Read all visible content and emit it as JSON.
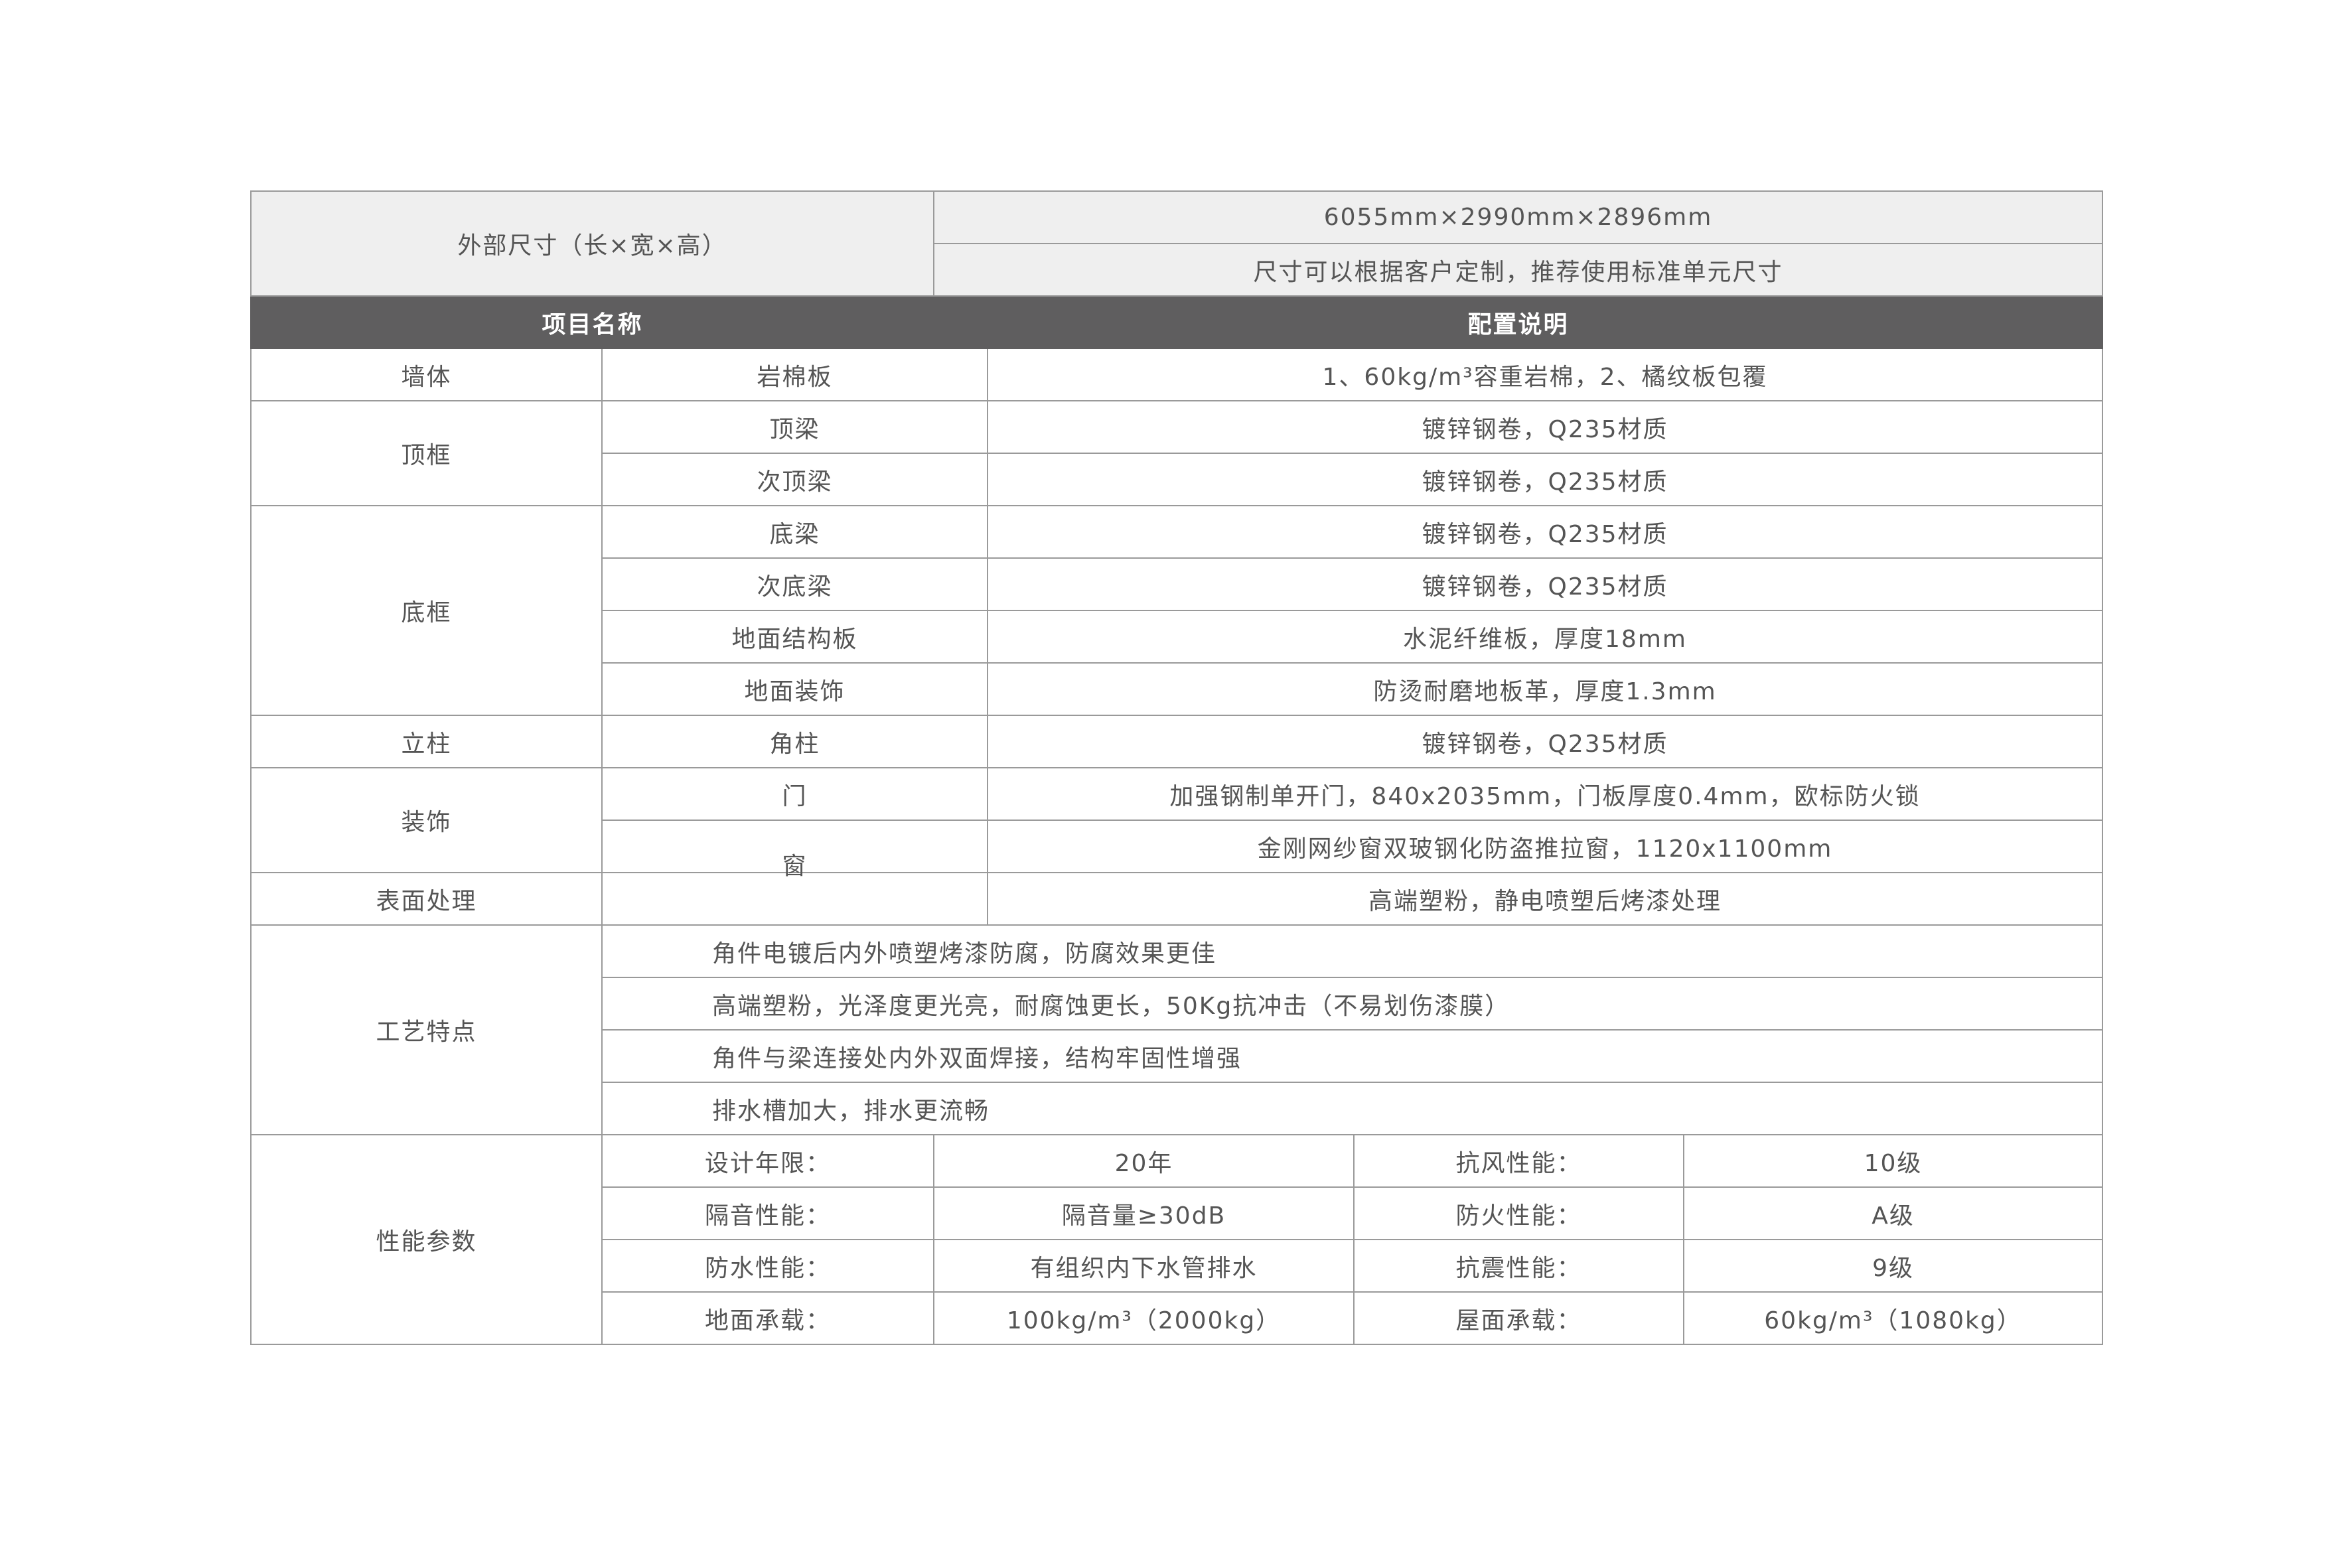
{
  "dimensions": {
    "label": "外部尺寸（长×宽×高）",
    "value": "6055mm×2990mm×2896mm",
    "note": "尺寸可以根据客户定制，推荐使用标准单元尺寸"
  },
  "header": {
    "item": "项目名称",
    "config": "配置说明"
  },
  "rows": [
    {
      "group": "墙体",
      "item": "岩棉板",
      "desc": "1、60kg/m³容重岩棉，2、橘纹板包覆"
    },
    {
      "group": "顶框",
      "item": "顶梁",
      "desc": "镀锌钢卷，Q235材质"
    },
    {
      "item": "次顶梁",
      "desc": "镀锌钢卷，Q235材质"
    },
    {
      "group": "底框",
      "item": "底梁",
      "desc": "镀锌钢卷，Q235材质"
    },
    {
      "item": "次底梁",
      "desc": "镀锌钢卷，Q235材质"
    },
    {
      "item": "地面结构板",
      "desc": "水泥纤维板，厚度18mm"
    },
    {
      "item": "地面装饰",
      "desc": "防烫耐磨地板革，厚度1.3mm"
    },
    {
      "group": "立柱",
      "item": "角柱",
      "desc": "镀锌钢卷，Q235材质"
    },
    {
      "group": "装饰",
      "item": "门",
      "desc": "加强钢制单开门，840x2035mm，门板厚度0.4mm，欧标防火锁"
    },
    {
      "item": "窗",
      "desc": "金刚网纱窗双玻钢化防盗推拉窗，1120x1100mm"
    },
    {
      "group": "表面处理",
      "item": "",
      "desc": "高端塑粉，静电喷塑后烤漆处理"
    }
  ],
  "craft": {
    "group": "工艺特点",
    "items": [
      "角件电镀后内外喷塑烤漆防腐，防腐效果更佳",
      "高端塑粉，光泽度更光亮，耐腐蚀更长，50Kg抗冲击（不易划伤漆膜）",
      "角件与梁连接处内外双面焊接，结构牢固性增强",
      "排水槽加大，排水更流畅"
    ]
  },
  "performance": {
    "group": "性能参数",
    "rows": [
      {
        "l1": "设计年限：",
        "v1": "20年",
        "l2": "抗风性能：",
        "v2": "10级"
      },
      {
        "l1": "隔音性能：",
        "v1": "隔音量≥30dB",
        "l2": "防火性能：",
        "v2": "A级"
      },
      {
        "l1": "防水性能：",
        "v1": "有组织内下水管排水",
        "l2": "抗震性能：",
        "v2": "9级"
      },
      {
        "l1": "地面承载：",
        "v1": "100kg/m³（2000kg）",
        "l2": "屋面承载：",
        "v2": "60kg/m³（1080kg）"
      }
    ]
  }
}
